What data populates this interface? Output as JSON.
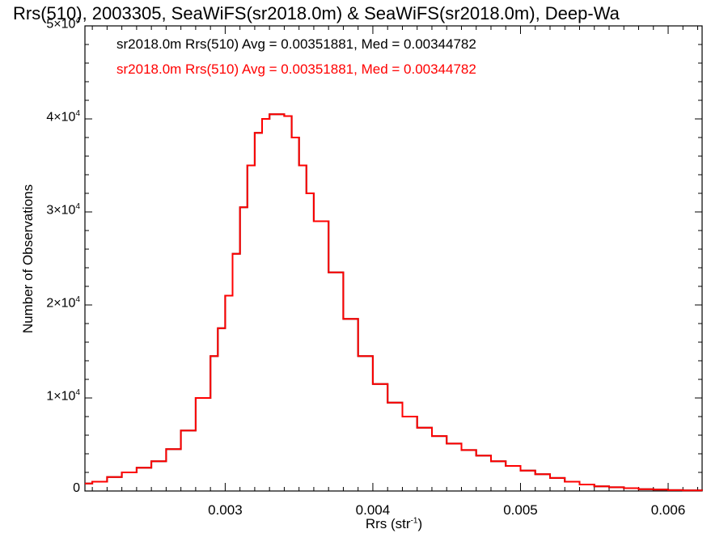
{
  "chart_data": {
    "type": "line",
    "title": "Rrs(510), 2003305, SeaWiFS(sr2018.0m) & SeaWiFS(sr2018.0m), Deep-Wa",
    "xlabel": "Rrs (str",
    "xlabel_sup": "-1",
    "xlabel_suffix": ")",
    "ylabel": "Number of Observations",
    "xlim": [
      0.00205,
      0.00623
    ],
    "ylim": [
      0,
      50000
    ],
    "x_ticks": [
      {
        "value": 0.003,
        "label": "0.003"
      },
      {
        "value": 0.004,
        "label": "0.004"
      },
      {
        "value": 0.005,
        "label": "0.005"
      },
      {
        "value": 0.006,
        "label": "0.006"
      }
    ],
    "y_ticks": [
      {
        "value": 0,
        "label": "0",
        "sup": ""
      },
      {
        "value": 10000,
        "label": "1×10",
        "sup": "4"
      },
      {
        "value": 20000,
        "label": "2×10",
        "sup": "4"
      },
      {
        "value": 30000,
        "label": "3×10",
        "sup": "4"
      },
      {
        "value": 40000,
        "label": "4×10",
        "sup": "4"
      },
      {
        "value": 50000,
        "label": "5×10",
        "sup": "4"
      }
    ],
    "grid": false,
    "legend_placement": "top-left",
    "series": [
      {
        "name": "sr2018.0m Rrs(510) Avg = 0.00351881, Med = 0.00344782",
        "color": "#000000",
        "x": [
          0.00205,
          0.0021,
          0.0022,
          0.0023,
          0.0024,
          0.0025,
          0.0026,
          0.0027,
          0.0028,
          0.0029,
          0.00295,
          0.003,
          0.00305,
          0.0031,
          0.00315,
          0.0032,
          0.00325,
          0.0033,
          0.00335,
          0.0034,
          0.00345,
          0.0035,
          0.00355,
          0.0036,
          0.0037,
          0.0038,
          0.0039,
          0.004,
          0.0041,
          0.0042,
          0.0043,
          0.0044,
          0.0045,
          0.0046,
          0.0047,
          0.0048,
          0.0049,
          0.005,
          0.0051,
          0.0052,
          0.0053,
          0.0054,
          0.0055,
          0.0056,
          0.0057,
          0.0058,
          0.0059,
          0.006,
          0.0061,
          0.00623
        ],
        "y": [
          800,
          1000,
          1500,
          2000,
          2500,
          3200,
          4500,
          6500,
          10000,
          14500,
          17500,
          21000,
          25500,
          30500,
          35000,
          38500,
          40000,
          40500,
          40500,
          40300,
          38000,
          35000,
          32000,
          29000,
          23500,
          18500,
          14500,
          11500,
          9500,
          8000,
          6800,
          5900,
          5100,
          4400,
          3800,
          3200,
          2700,
          2200,
          1800,
          1400,
          1000,
          700,
          500,
          400,
          300,
          200,
          150,
          100,
          60,
          40
        ]
      },
      {
        "name": "sr2018.0m Rrs(510) Avg = 0.00351881, Med = 0.00344782",
        "color": "#ff0000",
        "x": [
          0.00205,
          0.0021,
          0.0022,
          0.0023,
          0.0024,
          0.0025,
          0.0026,
          0.0027,
          0.0028,
          0.0029,
          0.00295,
          0.003,
          0.00305,
          0.0031,
          0.00315,
          0.0032,
          0.00325,
          0.0033,
          0.00335,
          0.0034,
          0.00345,
          0.0035,
          0.00355,
          0.0036,
          0.0037,
          0.0038,
          0.0039,
          0.004,
          0.0041,
          0.0042,
          0.0043,
          0.0044,
          0.0045,
          0.0046,
          0.0047,
          0.0048,
          0.0049,
          0.005,
          0.0051,
          0.0052,
          0.0053,
          0.0054,
          0.0055,
          0.0056,
          0.0057,
          0.0058,
          0.0059,
          0.006,
          0.0061,
          0.00623
        ],
        "y": [
          800,
          1000,
          1500,
          2000,
          2500,
          3200,
          4500,
          6500,
          10000,
          14500,
          17500,
          21000,
          25500,
          30500,
          35000,
          38500,
          40000,
          40500,
          40500,
          40300,
          38000,
          35000,
          32000,
          29000,
          23500,
          18500,
          14500,
          11500,
          9500,
          8000,
          6800,
          5900,
          5100,
          4400,
          3800,
          3200,
          2700,
          2200,
          1800,
          1400,
          1000,
          700,
          500,
          400,
          300,
          200,
          150,
          100,
          60,
          40
        ]
      }
    ]
  }
}
